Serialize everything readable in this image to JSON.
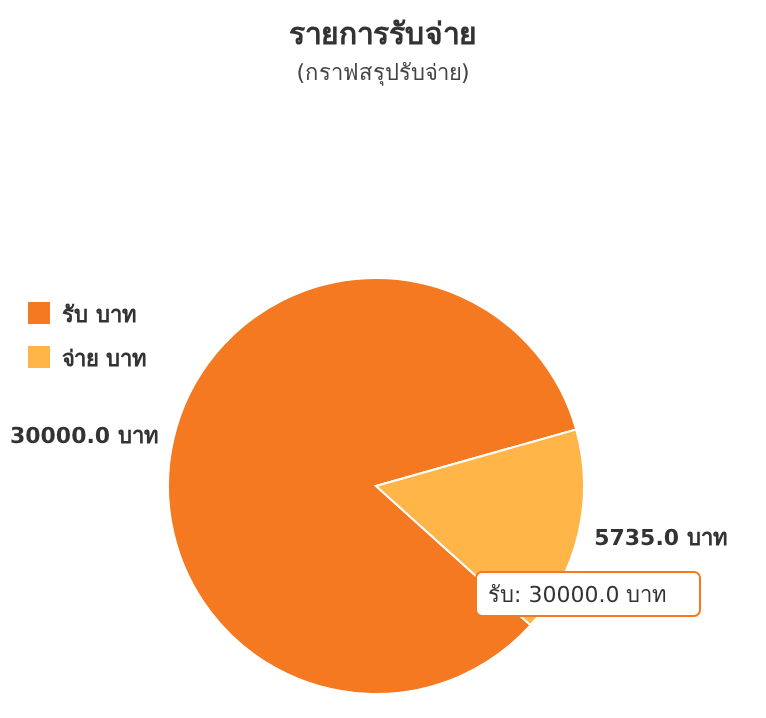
{
  "chart_data": {
    "type": "pie",
    "title": "รายการรับจ่าย",
    "subtitle": "(กราฟสรุปรับจ่าย)",
    "categories": [
      "รับ บาท",
      "จ่าย บาท"
    ],
    "values": [
      30000,
      5735
    ],
    "colors": [
      "#f47920",
      "#ffb547"
    ],
    "value_labels": [
      "30000.0 บาท",
      "5735.0 บาท"
    ],
    "legend": "left",
    "annotations": [
      "รับ: 30000.0 บาท"
    ]
  }
}
